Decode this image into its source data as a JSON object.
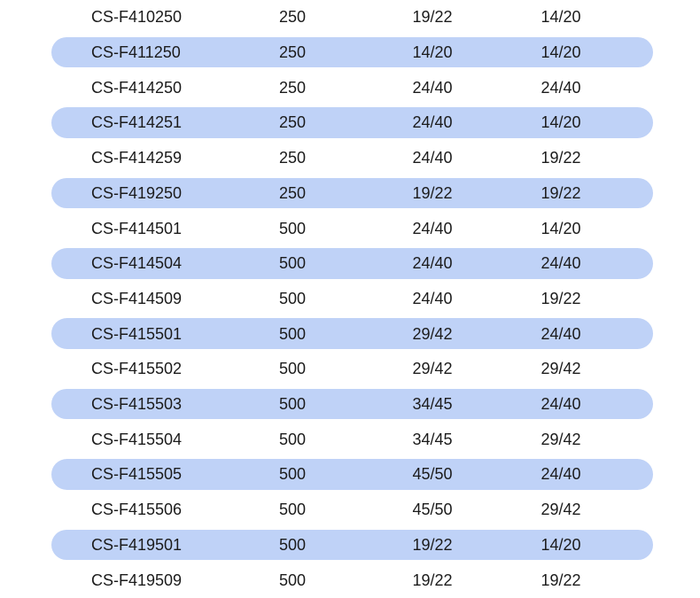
{
  "table": {
    "columns": [
      "catalog-number",
      "capacity-ml",
      "joint-size-1",
      "joint-size-2"
    ],
    "highlight_color": "#bfd2f7",
    "text_color": "#1b1b1b",
    "rows": [
      {
        "catalog": "CS-F410250",
        "capacity": "250",
        "joint1": "19/22",
        "joint2": "14/20",
        "highlighted": false
      },
      {
        "catalog": "CS-F411250",
        "capacity": "250",
        "joint1": "14/20",
        "joint2": "14/20",
        "highlighted": true
      },
      {
        "catalog": "CS-F414250",
        "capacity": "250",
        "joint1": "24/40",
        "joint2": "24/40",
        "highlighted": false
      },
      {
        "catalog": "CS-F414251",
        "capacity": "250",
        "joint1": "24/40",
        "joint2": "14/20",
        "highlighted": true
      },
      {
        "catalog": "CS-F414259",
        "capacity": "250",
        "joint1": "24/40",
        "joint2": "19/22",
        "highlighted": false
      },
      {
        "catalog": "CS-F419250",
        "capacity": "250",
        "joint1": "19/22",
        "joint2": "19/22",
        "highlighted": true
      },
      {
        "catalog": "CS-F414501",
        "capacity": "500",
        "joint1": "24/40",
        "joint2": "14/20",
        "highlighted": false
      },
      {
        "catalog": "CS-F414504",
        "capacity": "500",
        "joint1": "24/40",
        "joint2": "24/40",
        "highlighted": true
      },
      {
        "catalog": "CS-F414509",
        "capacity": "500",
        "joint1": "24/40",
        "joint2": "19/22",
        "highlighted": false
      },
      {
        "catalog": "CS-F415501",
        "capacity": "500",
        "joint1": "29/42",
        "joint2": "24/40",
        "highlighted": true
      },
      {
        "catalog": "CS-F415502",
        "capacity": "500",
        "joint1": "29/42",
        "joint2": "29/42",
        "highlighted": false
      },
      {
        "catalog": "CS-F415503",
        "capacity": "500",
        "joint1": "34/45",
        "joint2": "24/40",
        "highlighted": true
      },
      {
        "catalog": "CS-F415504",
        "capacity": "500",
        "joint1": "34/45",
        "joint2": "29/42",
        "highlighted": false
      },
      {
        "catalog": "CS-F415505",
        "capacity": "500",
        "joint1": "45/50",
        "joint2": "24/40",
        "highlighted": true
      },
      {
        "catalog": "CS-F415506",
        "capacity": "500",
        "joint1": "45/50",
        "joint2": "29/42",
        "highlighted": false
      },
      {
        "catalog": "CS-F419501",
        "capacity": "500",
        "joint1": "19/22",
        "joint2": "14/20",
        "highlighted": true
      },
      {
        "catalog": "CS-F419509",
        "capacity": "500",
        "joint1": "19/22",
        "joint2": "19/22",
        "highlighted": false
      }
    ]
  }
}
